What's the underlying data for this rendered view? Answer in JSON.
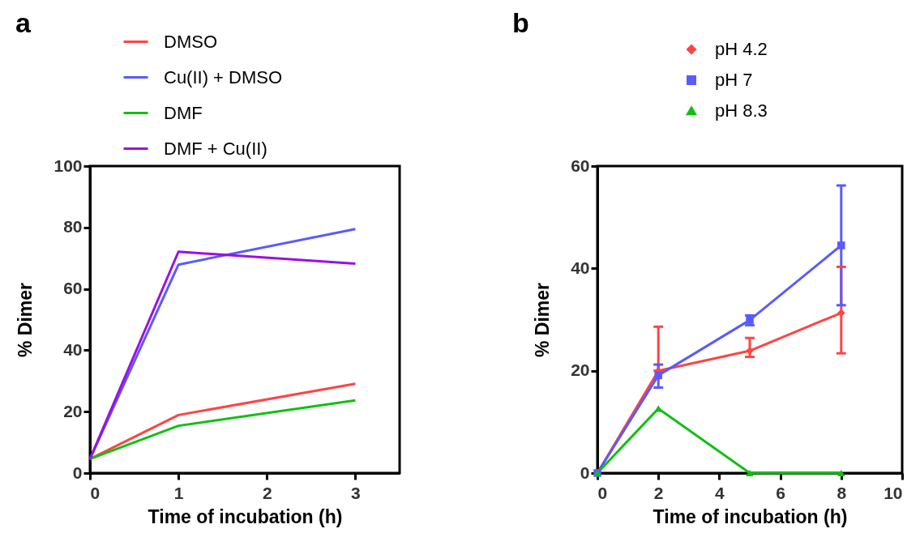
{
  "chart_data": [
    {
      "type": "line",
      "title": "a",
      "xlabel": "Time of incubation (h)",
      "ylabel": "%  Dimer",
      "x": [
        0,
        1,
        3
      ],
      "xlim": [
        0,
        3.5
      ],
      "xticks": [
        0,
        1,
        2,
        3
      ],
      "ylim": [
        0,
        100
      ],
      "yticks": [
        0,
        20,
        40,
        60,
        80,
        100
      ],
      "grid": false,
      "legend": "top",
      "marker": "none",
      "series": [
        {
          "name": "DMSO",
          "color": "#ff4444",
          "values": [
            4.6,
            18.9,
            29.1
          ]
        },
        {
          "name": "Cu(II) + DMSO",
          "color": "#5a5aff",
          "values": [
            4.6,
            67.9,
            79.5
          ]
        },
        {
          "name": "DMF",
          "color": "#10c010",
          "values": [
            4.6,
            15.4,
            23.7
          ]
        },
        {
          "name": "DMF + Cu(II)",
          "color": "#9b10e0",
          "values": [
            4.6,
            72.1,
            68.2
          ]
        }
      ]
    },
    {
      "type": "line",
      "title": "b",
      "xlabel": "Time of incubation (h)",
      "ylabel": "%  Dimer",
      "x": [
        0,
        2,
        5,
        8
      ],
      "xlim": [
        0,
        10
      ],
      "xticks": [
        0,
        2,
        4,
        6,
        8,
        10
      ],
      "ylim": [
        0,
        60
      ],
      "yticks": [
        0,
        20,
        40,
        60
      ],
      "grid": false,
      "legend": "top",
      "series": [
        {
          "name": "pH 4.2",
          "color": "#ff4444",
          "marker": "diamond",
          "values": [
            0,
            20,
            23.9,
            31.3
          ],
          "errors": [
            null,
            [
              20,
              28.6
            ],
            [
              22.7,
              26.4
            ],
            [
              23.4,
              40.3
            ]
          ]
        },
        {
          "name": "pH 7",
          "color": "#5a5aff",
          "marker": "square",
          "values": [
            0,
            19.1,
            29.9,
            44.5
          ],
          "errors": [
            null,
            [
              16.7,
              21.2
            ],
            [
              28.9,
              30.8
            ],
            [
              32.8,
              56.2
            ]
          ]
        },
        {
          "name": "pH 8.3",
          "color": "#10c010",
          "marker": "triangle",
          "values": [
            0,
            12.6,
            0,
            0
          ]
        }
      ]
    }
  ]
}
